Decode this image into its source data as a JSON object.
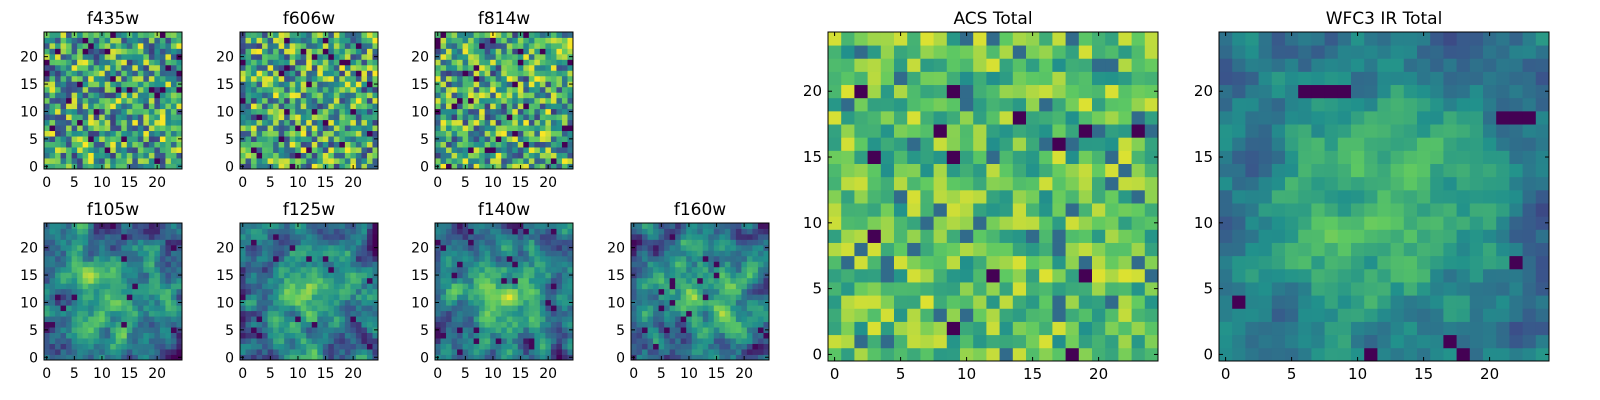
{
  "figure": {
    "colormap": "viridis",
    "colormap_stops": [
      "#440154",
      "#3b528b",
      "#21918c",
      "#5ec962",
      "#fde725"
    ]
  },
  "chart_data": [
    {
      "id": "f435w",
      "type": "heatmap",
      "title": "f435w",
      "grid_size": 25,
      "pattern": "noise",
      "xticks": [
        0,
        5,
        10,
        15,
        20
      ],
      "yticks": [
        0,
        5,
        10,
        15,
        20
      ],
      "xlim": [
        0,
        24
      ],
      "ylim": [
        0,
        24
      ],
      "seed": 11
    },
    {
      "id": "f606w",
      "type": "heatmap",
      "title": "f606w",
      "grid_size": 25,
      "pattern": "noise",
      "xticks": [
        0,
        5,
        10,
        15,
        20
      ],
      "yticks": [
        0,
        5,
        10,
        15,
        20
      ],
      "xlim": [
        0,
        24
      ],
      "ylim": [
        0,
        24
      ],
      "seed": 23
    },
    {
      "id": "f814w",
      "type": "heatmap",
      "title": "f814w",
      "grid_size": 25,
      "pattern": "noise",
      "xticks": [
        0,
        5,
        10,
        15,
        20
      ],
      "yticks": [
        0,
        5,
        10,
        15,
        20
      ],
      "xlim": [
        0,
        24
      ],
      "ylim": [
        0,
        24
      ],
      "seed": 37
    },
    {
      "id": "f105w",
      "type": "heatmap",
      "title": "f105w",
      "grid_size": 25,
      "pattern": "smooth-blob",
      "xticks": [
        0,
        5,
        10,
        15,
        20
      ],
      "yticks": [
        0,
        5,
        10,
        15,
        20
      ],
      "xlim": [
        0,
        24
      ],
      "ylim": [
        0,
        24
      ],
      "seed": 41
    },
    {
      "id": "f125w",
      "type": "heatmap",
      "title": "f125w",
      "grid_size": 25,
      "pattern": "smooth-blob",
      "xticks": [
        0,
        5,
        10,
        15,
        20
      ],
      "yticks": [
        0,
        5,
        10,
        15,
        20
      ],
      "xlim": [
        0,
        24
      ],
      "ylim": [
        0,
        24
      ],
      "seed": 53
    },
    {
      "id": "f140w",
      "type": "heatmap",
      "title": "f140w",
      "grid_size": 25,
      "pattern": "smooth-blob",
      "xticks": [
        0,
        5,
        10,
        15,
        20
      ],
      "yticks": [
        0,
        5,
        10,
        15,
        20
      ],
      "xlim": [
        0,
        24
      ],
      "ylim": [
        0,
        24
      ],
      "seed": 67
    },
    {
      "id": "f160w",
      "type": "heatmap",
      "title": "f160w",
      "grid_size": 25,
      "pattern": "smooth-blob",
      "xticks": [
        0,
        5,
        10,
        15,
        20
      ],
      "yticks": [
        0,
        5,
        10,
        15,
        20
      ],
      "xlim": [
        0,
        24
      ],
      "ylim": [
        0,
        24
      ],
      "seed": 79
    },
    {
      "id": "acs-total",
      "type": "heatmap",
      "title": "ACS Total",
      "grid_size": 25,
      "pattern": "noise-bright",
      "xticks": [
        0,
        5,
        10,
        15,
        20
      ],
      "yticks": [
        0,
        5,
        10,
        15,
        20
      ],
      "xlim": [
        0,
        24
      ],
      "ylim": [
        0,
        24
      ],
      "seed": 97,
      "dark_cells": [
        [
          2,
          20
        ],
        [
          9,
          20
        ],
        [
          8,
          17
        ],
        [
          14,
          18
        ],
        [
          19,
          17
        ],
        [
          23,
          17
        ],
        [
          17,
          16
        ],
        [
          3,
          15
        ],
        [
          9,
          15
        ],
        [
          3,
          9
        ],
        [
          12,
          6
        ],
        [
          19,
          6
        ],
        [
          9,
          2
        ],
        [
          18,
          0
        ]
      ]
    },
    {
      "id": "wfc3-ir-total",
      "type": "heatmap",
      "title": "WFC3 IR Total",
      "grid_size": 25,
      "pattern": "central-blob",
      "xticks": [
        0,
        5,
        10,
        15,
        20
      ],
      "yticks": [
        0,
        5,
        10,
        15,
        20
      ],
      "xlim": [
        0,
        24
      ],
      "ylim": [
        0,
        24
      ],
      "seed": 113,
      "dark_cells": [
        [
          6,
          20
        ],
        [
          7,
          20
        ],
        [
          8,
          20
        ],
        [
          9,
          20
        ],
        [
          21,
          18
        ],
        [
          22,
          18
        ],
        [
          23,
          18
        ],
        [
          1,
          4
        ],
        [
          17,
          1
        ],
        [
          11,
          0
        ],
        [
          18,
          0
        ],
        [
          22,
          7
        ]
      ]
    }
  ]
}
